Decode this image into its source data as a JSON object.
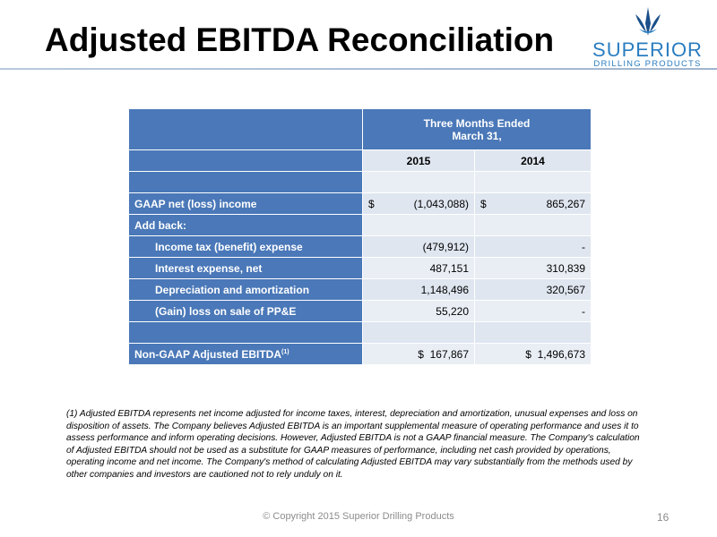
{
  "title": "Adjusted EBITDA Reconciliation",
  "logo": {
    "word": "SUPERIOR",
    "sub": "DRILLING PRODUCTS"
  },
  "table": {
    "header_line1": "Three Months Ended",
    "header_line2": "March 31,",
    "year1": "2015",
    "year2": "2014",
    "rows": [
      {
        "label": "GAAP net (loss) income",
        "v1_sym": "$",
        "v1": "(1,043,088)",
        "v2_sym": "$",
        "v2": "865,267"
      },
      {
        "label": "Add back:"
      },
      {
        "label": "Income tax (benefit) expense",
        "v1": "(479,912)",
        "v2": "-"
      },
      {
        "label": "Interest expense, net",
        "v1": "487,151",
        "v2": "310,839"
      },
      {
        "label": "Depreciation and amortization",
        "v1": "1,148,496",
        "v2": "320,567"
      },
      {
        "label": "(Gain) loss on sale of PP&E",
        "v1": "55,220",
        "v2": "-"
      }
    ],
    "total": {
      "label": "Non-GAAP Adjusted EBITDA",
      "sup": "(1)",
      "v1": "$  167,867",
      "v2": "$  1,496,673"
    }
  },
  "footnote": "(1) Adjusted EBITDA represents net income adjusted for income taxes, interest, depreciation and amortization, unusual expenses and loss on disposition of assets.  The Company believes Adjusted EBITDA is an important supplemental measure of operating performance and uses it to assess performance and inform operating decisions.  However, Adjusted EBITDA is not a GAAP financial measure.  The Company's calculation of Adjusted EBITDA should not be used as a substitute for GAAP measures of performance, including net cash provided by operations, operating income and net income.  The Company's method of calculating Adjusted EBITDA may vary substantially from the methods used by other companies and investors are cautioned not to rely unduly on it.",
  "copyright": "© Copyright 2015 Superior Drilling Products",
  "page_number": "16"
}
